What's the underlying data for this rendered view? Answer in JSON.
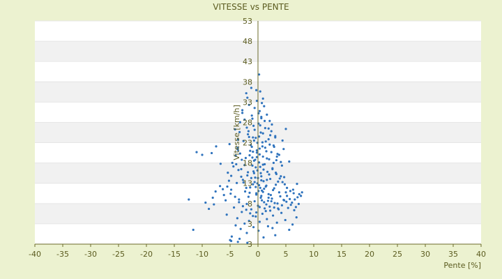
{
  "chart_data": {
    "type": "scatter",
    "title": "VITESSE vs PENTE",
    "xlabel": "Pente [%]",
    "ylabel": "Vitesse [km/h]",
    "xlim": [
      -40,
      40
    ],
    "ylim": [
      3,
      53
    ],
    "x_ticks": [
      -40,
      -35,
      -30,
      -25,
      -20,
      -15,
      -10,
      -5,
      0,
      5,
      10,
      15,
      20,
      25,
      30,
      35,
      40
    ],
    "y_tick_labels": [
      "53",
      "48",
      "43",
      "38",
      "33",
      "28",
      "23",
      "18",
      "13",
      "8",
      "3",
      "3"
    ],
    "grid": true,
    "legend": "none",
    "colors": {
      "background": "#ecf2d0",
      "plot_band_light": "#ffffff",
      "plot_band_dark": "#f1f1f1",
      "text": "#5b5b1f",
      "axis": "#6b6b2a",
      "points": "#2f73bd"
    },
    "series": [
      {
        "points": [
          [
            0.2,
            41
          ],
          [
            -1.2,
            38
          ],
          [
            -0.3,
            37.5
          ],
          [
            0.4,
            37.2
          ],
          [
            -2.1,
            36.8
          ],
          [
            0.9,
            35.6
          ],
          [
            -1.6,
            34.2
          ],
          [
            1.1,
            33.9
          ],
          [
            -0.6,
            33.5
          ],
          [
            0.3,
            32.8
          ],
          [
            -2.8,
            32.4
          ],
          [
            1.6,
            32.0
          ],
          [
            0.6,
            31.5
          ],
          [
            -1.0,
            31.1
          ],
          [
            2.1,
            30.6
          ],
          [
            -3.2,
            30.3
          ],
          [
            0.1,
            30.0
          ],
          [
            -0.8,
            29.5
          ],
          [
            1.3,
            29.0
          ],
          [
            -4.1,
            28.7
          ],
          [
            2.4,
            28.3
          ],
          [
            0.5,
            28.0
          ],
          [
            -1.8,
            27.6
          ],
          [
            3.1,
            27.2
          ],
          [
            -0.4,
            26.8
          ],
          [
            1.9,
            26.5
          ],
          [
            -2.6,
            26.1
          ],
          [
            0.8,
            25.8
          ],
          [
            -5.1,
            25.4
          ],
          [
            2.8,
            25.1
          ],
          [
            -1.1,
            24.8
          ],
          [
            0.3,
            24.4
          ],
          [
            -3.6,
            24.1
          ],
          [
            1.5,
            23.8
          ],
          [
            -0.2,
            23.5
          ],
          [
            3.5,
            23.2
          ],
          [
            -1.5,
            22.9
          ],
          [
            0.9,
            22.6
          ],
          [
            -2.2,
            22.3
          ],
          [
            2.0,
            22.0
          ],
          [
            -0.7,
            21.7
          ],
          [
            4.1,
            21.4
          ],
          [
            -4.6,
            21.2
          ],
          [
            1.2,
            20.9
          ],
          [
            -1.0,
            20.6
          ],
          [
            0.4,
            20.3
          ],
          [
            2.6,
            20.0
          ],
          [
            -3.0,
            19.8
          ],
          [
            -0.1,
            19.5
          ],
          [
            1.7,
            19.2
          ],
          [
            -5.4,
            19.0
          ],
          [
            3.3,
            18.7
          ],
          [
            -1.9,
            18.4
          ],
          [
            0.6,
            18.2
          ],
          [
            -0.5,
            17.9
          ],
          [
            2.2,
            17.6
          ],
          [
            -2.7,
            17.4
          ],
          [
            1.0,
            17.1
          ],
          [
            4.4,
            16.9
          ],
          [
            -3.8,
            16.7
          ],
          [
            -0.9,
            16.4
          ],
          [
            0.2,
            16.2
          ],
          [
            1.4,
            15.9
          ],
          [
            -1.4,
            15.7
          ],
          [
            2.9,
            15.5
          ],
          [
            -4.8,
            15.2
          ],
          [
            0.7,
            15.0
          ],
          [
            -2.3,
            14.8
          ],
          [
            3.8,
            14.6
          ],
          [
            -0.3,
            14.4
          ],
          [
            1.9,
            14.2
          ],
          [
            -6.1,
            14.0
          ],
          [
            5.2,
            13.8
          ],
          [
            -1.7,
            13.6
          ],
          [
            0.5,
            13.4
          ],
          [
            2.5,
            13.2
          ],
          [
            -3.4,
            13.0
          ],
          [
            4.7,
            12.8
          ],
          [
            -0.6,
            12.6
          ],
          [
            1.1,
            12.4
          ],
          [
            3.0,
            12.2
          ],
          [
            -2.0,
            12.0
          ],
          [
            5.9,
            11.8
          ],
          [
            0.0,
            11.6
          ],
          [
            2.1,
            11.4
          ],
          [
            -4.3,
            11.2
          ],
          [
            3.6,
            11.0
          ],
          [
            -1.2,
            10.8
          ],
          [
            6.5,
            10.6
          ],
          [
            1.4,
            10.4
          ],
          [
            -2.9,
            10.2
          ],
          [
            4.2,
            10.0
          ],
          [
            0.8,
            9.8
          ],
          [
            -5.6,
            9.6
          ],
          [
            2.7,
            9.4
          ],
          [
            -0.4,
            9.2
          ],
          [
            6.9,
            9.0
          ],
          [
            -3.7,
            8.8
          ],
          [
            1.6,
            8.6
          ],
          [
            4.9,
            8.4
          ],
          [
            -1.6,
            8.2
          ],
          [
            0.3,
            8.0
          ],
          [
            3.4,
            7.8
          ],
          [
            -2.4,
            7.6
          ],
          [
            6.2,
            7.4
          ],
          [
            -4.0,
            7.2
          ],
          [
            1.8,
            7.0
          ],
          [
            -0.8,
            6.8
          ],
          [
            2.6,
            6.6
          ],
          [
            -3.1,
            6.4
          ],
          [
            5.6,
            6.2
          ],
          [
            0.1,
            6.0
          ],
          [
            -2.0,
            5.5
          ],
          [
            3.1,
            5.0
          ],
          [
            -4.7,
            4.7
          ],
          [
            1.0,
            4.5
          ],
          [
            -3.3,
            4.2
          ],
          [
            -5.0,
            3.9
          ],
          [
            -4.8,
            3.7
          ],
          [
            -3.6,
            3.5
          ],
          [
            -1.9,
            3.3
          ],
          [
            -11.6,
            6.2
          ],
          [
            -12.4,
            13.0
          ],
          [
            -9.4,
            12.3
          ],
          [
            -8.1,
            13.4
          ],
          [
            -7.6,
            14.8
          ],
          [
            -6.8,
            16.0
          ],
          [
            -8.8,
            10.9
          ],
          [
            -11.0,
            23.6
          ],
          [
            -10.0,
            23.0
          ],
          [
            -8.3,
            23.4
          ],
          [
            -7.9,
            11.9
          ],
          [
            -6.3,
            15.3
          ],
          [
            -6.7,
            21.0
          ],
          [
            -7.5,
            24.9
          ],
          [
            -5.8,
            12.8
          ],
          [
            7.0,
            16.5
          ],
          [
            7.4,
            14.2
          ],
          [
            6.6,
            13.0
          ],
          [
            7.7,
            13.8
          ],
          [
            6.1,
            12.3
          ],
          [
            5.7,
            13.1
          ],
          [
            5.1,
            12.5
          ],
          [
            4.6,
            12.9
          ],
          [
            4.0,
            13.7
          ],
          [
            3.5,
            12.1
          ],
          [
            2.9,
            11.2
          ],
          [
            2.4,
            12.6
          ],
          [
            1.9,
            13.4
          ],
          [
            1.5,
            11.9
          ],
          [
            6.8,
            11.3
          ],
          [
            7.3,
            12.0
          ],
          [
            5.4,
            11.1
          ],
          [
            4.3,
            11.7
          ],
          [
            3.7,
            10.8
          ],
          [
            2.2,
            10.5
          ],
          [
            1.2,
            11.0
          ],
          [
            0.7,
            12.8
          ],
          [
            5.0,
            14.6
          ],
          [
            6.3,
            15.2
          ],
          [
            4.8,
            16.4
          ],
          [
            3.9,
            17.7
          ],
          [
            3.2,
            19.0
          ],
          [
            2.8,
            21.2
          ],
          [
            2.4,
            23.6
          ],
          [
            4.6,
            24.3
          ],
          [
            5.6,
            21.5
          ],
          [
            4.4,
            26.2
          ],
          [
            5.0,
            28.8
          ],
          [
            3.1,
            26.9
          ],
          [
            2.1,
            25.3
          ],
          [
            1.6,
            22.2
          ],
          [
            0.9,
            27.8
          ],
          [
            0.4,
            29.6
          ],
          [
            1.3,
            24.6
          ],
          [
            1.0,
            19.7
          ],
          [
            0.6,
            17.3
          ],
          [
            0.2,
            21.3
          ],
          [
            -0.2,
            22.5
          ],
          [
            -0.4,
            20.2
          ],
          [
            -0.7,
            18.9
          ],
          [
            -0.9,
            23.7
          ],
          [
            -1.3,
            25.2
          ],
          [
            -1.6,
            27.0
          ],
          [
            -2.0,
            29.1
          ],
          [
            -2.4,
            30.9
          ],
          [
            -2.8,
            33.0
          ],
          [
            -3.3,
            28.1
          ],
          [
            -3.6,
            26.4
          ],
          [
            -4.0,
            22.8
          ],
          [
            -4.4,
            20.4
          ],
          [
            -4.8,
            18.3
          ],
          [
            -5.2,
            17.2
          ],
          [
            -5.5,
            15.9
          ],
          [
            -4.9,
            14.3
          ],
          [
            -4.1,
            13.6
          ],
          [
            -3.4,
            12.4
          ],
          [
            -2.7,
            11.5
          ],
          [
            -2.1,
            10.7
          ],
          [
            -1.4,
            9.9
          ],
          [
            -0.9,
            9.3
          ],
          [
            -0.3,
            10.1
          ],
          [
            0.3,
            11.3
          ],
          [
            0.9,
            14.7
          ],
          [
            1.5,
            16.1
          ],
          [
            2.0,
            18.6
          ],
          [
            2.6,
            19.8
          ],
          [
            3.3,
            21.8
          ],
          [
            3.8,
            23.0
          ],
          [
            4.3,
            20.6
          ],
          [
            4.7,
            18.0
          ],
          [
            5.2,
            15.6
          ],
          [
            5.8,
            14.9
          ],
          [
            6.4,
            14.4
          ],
          [
            7.1,
            13.5
          ],
          [
            7.9,
            14.6
          ],
          [
            -0.1,
            25.7
          ],
          [
            0.2,
            27.1
          ],
          [
            -0.6,
            28.6
          ],
          [
            0.1,
            32.3
          ],
          [
            -1.1,
            31.8
          ],
          [
            0.7,
            34.6
          ],
          [
            -0.2,
            35.1
          ],
          [
            -1.9,
            35.8
          ],
          [
            -0.4,
            15.8
          ],
          [
            -0.1,
            16.6
          ],
          [
            0.1,
            14.9
          ],
          [
            0.4,
            15.6
          ],
          [
            -0.3,
            14.1
          ],
          [
            0.6,
            13.8
          ],
          [
            -0.6,
            16.9
          ],
          [
            0.0,
            17.8
          ],
          [
            0.5,
            18.9
          ],
          [
            -0.8,
            19.3
          ],
          [
            0.9,
            20.8
          ],
          [
            -0.5,
            21.9
          ],
          [
            0.3,
            23.1
          ],
          [
            -0.2,
            24.0
          ],
          [
            0.8,
            24.9
          ],
          [
            -0.7,
            26.2
          ],
          [
            1.8,
            12.7
          ],
          [
            2.3,
            14.0
          ],
          [
            2.7,
            15.1
          ],
          [
            3.2,
            16.3
          ],
          [
            3.6,
            17.0
          ],
          [
            4.1,
            18.2
          ],
          [
            1.1,
            15.4
          ],
          [
            1.6,
            17.4
          ],
          [
            -1.5,
            14.5
          ],
          [
            -2.1,
            15.6
          ],
          [
            -2.6,
            16.8
          ],
          [
            -3.0,
            18.1
          ],
          [
            -3.5,
            19.6
          ],
          [
            -3.9,
            20.9
          ],
          [
            -1.2,
            17.8
          ],
          [
            -1.8,
            19.1
          ],
          [
            -2.4,
            20.7
          ],
          [
            -2.9,
            21.9
          ],
          [
            -3.2,
            23.3
          ],
          [
            -3.7,
            24.6
          ],
          [
            -1.0,
            22.4
          ],
          [
            -1.4,
            23.9
          ],
          [
            -0.9,
            26.9
          ],
          [
            -1.7,
            28.3
          ],
          [
            2.2,
            27.4
          ],
          [
            2.9,
            24.8
          ],
          [
            3.4,
            22.6
          ],
          [
            1.4,
            26.0
          ],
          [
            1.9,
            28.9
          ],
          [
            1.2,
            30.6
          ],
          [
            0.6,
            31.2
          ],
          [
            2.5,
            29.8
          ]
        ]
      }
    ]
  }
}
